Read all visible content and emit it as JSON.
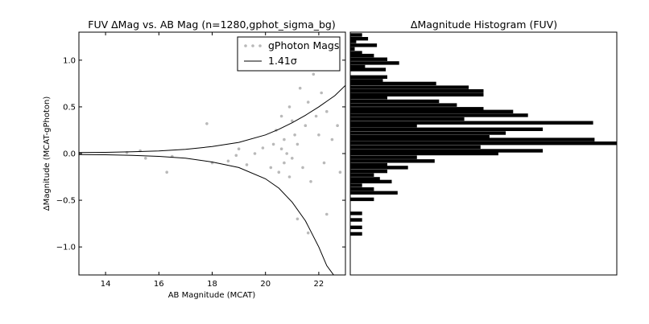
{
  "chart_data": [
    {
      "type": "scatter",
      "title": "FUV ΔMag vs. AB Mag (n=1280,gphot_sigma_bg)",
      "xlabel": "AB Magnitude (MCAT)",
      "ylabel": "ΔMagnitude (MCAT-gPhoton)",
      "xlim": [
        13,
        23
      ],
      "ylim": [
        -1.3,
        1.3
      ],
      "xticks": [
        "14",
        "16",
        "18",
        "20",
        "22"
      ],
      "yticks": [
        "1.0",
        "0.5",
        "0.0",
        "−0.5",
        "−1.0"
      ],
      "grid": false,
      "legend": {
        "placement": "top-right",
        "entries": [
          "gPhoton Mags",
          "1.41σ"
        ]
      },
      "series": [
        {
          "name": "gPhoton Mags",
          "style": "points",
          "color": "#808080",
          "x": [
            14.8,
            15.3,
            15.5,
            16.3,
            16.5,
            17.8,
            18.0,
            18.6,
            18.9,
            19.0,
            19.3,
            19.6,
            19.9,
            20.2,
            20.3,
            20.4,
            20.5,
            20.6,
            20.6,
            20.7,
            20.7,
            20.8,
            20.9,
            20.9,
            21.0,
            21.0,
            21.1,
            21.2,
            21.3,
            21.4,
            21.5,
            21.6,
            21.7,
            21.8,
            21.9,
            22.0,
            22.1,
            22.2,
            22.3,
            22.4,
            22.5,
            22.6,
            22.7,
            22.8,
            21.2,
            21.6,
            22.0,
            22.3
          ],
          "y": [
            0.01,
            0.03,
            -0.05,
            -0.2,
            -0.03,
            0.32,
            -0.1,
            -0.08,
            -0.02,
            0.05,
            -0.12,
            0.0,
            0.06,
            -0.15,
            0.1,
            0.25,
            -0.2,
            0.05,
            0.4,
            -0.1,
            0.15,
            0.0,
            0.5,
            -0.25,
            0.35,
            -0.05,
            0.2,
            0.1,
            0.7,
            -0.15,
            0.3,
            0.55,
            -0.3,
            0.85,
            0.4,
            0.2,
            0.65,
            -0.1,
            0.45,
            0.9,
            0.15,
            1.05,
            0.3,
            -0.2,
            -0.7,
            -0.85,
            1.1,
            -0.65
          ]
        },
        {
          "name": "1.41σ",
          "style": "line",
          "color": "#000000",
          "x": [
            13,
            14,
            15,
            16,
            17,
            18,
            19,
            20,
            20.5,
            21,
            21.5,
            22,
            22.3,
            22.6,
            23
          ],
          "y_upper": [
            0.01,
            0.013,
            0.019,
            0.028,
            0.045,
            0.075,
            0.12,
            0.2,
            0.26,
            0.33,
            0.41,
            0.5,
            0.56,
            0.62,
            0.73
          ],
          "y_lower": [
            -0.01,
            -0.013,
            -0.02,
            -0.03,
            -0.05,
            -0.09,
            -0.15,
            -0.27,
            -0.37,
            -0.52,
            -0.72,
            -1.0,
            -1.2,
            -1.35,
            -1.5
          ]
        }
      ]
    },
    {
      "type": "bar",
      "orientation": "horizontal",
      "title": "ΔMagnitude Histogram (FUV)",
      "ylim": [
        -1.3,
        1.3
      ],
      "xlim": [
        0,
        180
      ],
      "grid": false,
      "color": "#000000",
      "bin_width": 0.0375,
      "bin_centers": [
        1.27,
        1.23,
        1.2,
        1.16,
        1.12,
        1.08,
        1.05,
        1.01,
        0.97,
        0.93,
        0.9,
        0.86,
        0.82,
        0.78,
        0.75,
        0.71,
        0.67,
        0.63,
        0.6,
        0.56,
        0.52,
        0.48,
        0.45,
        0.41,
        0.37,
        0.33,
        0.3,
        0.26,
        0.22,
        0.18,
        0.15,
        0.11,
        0.07,
        0.03,
        0.0,
        -0.04,
        -0.08,
        -0.12,
        -0.15,
        -0.19,
        -0.23,
        -0.27,
        -0.3,
        -0.34,
        -0.38,
        -0.42,
        -0.49,
        -0.64,
        -0.71,
        -0.79,
        -0.86,
        -0.94
      ],
      "values": [
        8,
        12,
        4,
        18,
        3,
        8,
        16,
        25,
        33,
        10,
        24,
        0,
        25,
        22,
        58,
        80,
        90,
        90,
        25,
        60,
        72,
        90,
        110,
        120,
        77,
        164,
        45,
        130,
        105,
        94,
        165,
        180,
        88,
        130,
        100,
        45,
        57,
        25,
        39,
        25,
        16,
        20,
        28,
        8,
        16,
        32,
        16,
        8,
        8,
        8,
        8,
        0
      ]
    }
  ]
}
